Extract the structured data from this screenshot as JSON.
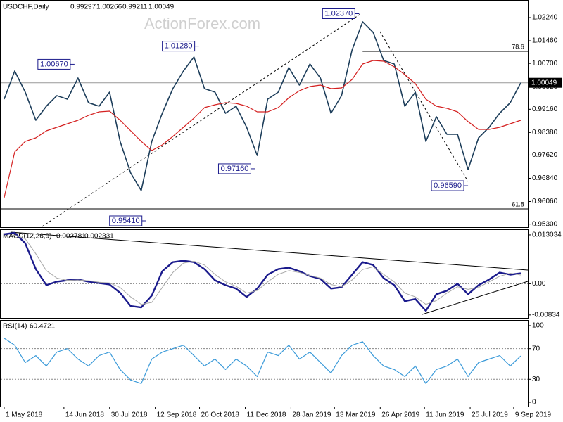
{
  "header": {
    "symbol": "USDCHF,Daily",
    "ohlc": [
      0.99297,
      1.00266,
      0.99211,
      1.00049
    ],
    "watermark": "ActionForex.com"
  },
  "chart_data": [
    {
      "type": "line",
      "panel": "price",
      "x": [
        0,
        1,
        2,
        3,
        4,
        5,
        6,
        7,
        8,
        9,
        10,
        11,
        12,
        13,
        14,
        15,
        16,
        17,
        18,
        19,
        20,
        21,
        22,
        23,
        24,
        25,
        26,
        27,
        28,
        29,
        30,
        31,
        32,
        33,
        34,
        35,
        36,
        37,
        38,
        39,
        40,
        41,
        42,
        43,
        44,
        45,
        46,
        47,
        48,
        49
      ],
      "series": [
        {
          "color": "#1c3d5a",
          "width": 1.6,
          "values": [
            0.99498,
            1.00443,
            0.99734,
            0.98789,
            0.99261,
            0.99616,
            0.99498,
            1.00207,
            0.9938,
            0.99261,
            0.99734,
            0.98079,
            0.97016,
            0.96425,
            0.98079,
            0.99025,
            0.99852,
            1.00443,
            1.00916,
            0.99852,
            0.99734,
            0.99025,
            0.99261,
            0.98552,
            0.97607,
            0.99498,
            0.99734,
            1.00562,
            0.99971,
            1.0068,
            1.00207,
            0.99025,
            0.99616,
            1.01153,
            1.02098,
            1.01744,
            1.00798,
            1.0068,
            0.99261,
            0.99734,
            0.98079,
            0.98907,
            0.98316,
            0.98316,
            0.97134,
            0.98198,
            0.98552,
            0.99025,
            0.9938,
            1.00049
          ]
        },
        {
          "color": "#d42020",
          "width": 1.2,
          "values": [
            0.96188,
            0.97725,
            0.98079,
            0.98198,
            0.98434,
            0.98552,
            0.9867,
            0.98789,
            0.98954,
            0.99072,
            0.99096,
            0.98789,
            0.98434,
            0.98079,
            0.97772,
            0.97961,
            0.98245,
            0.98552,
            0.9886,
            0.99214,
            0.99309,
            0.9938,
            0.99356,
            0.99261,
            0.99072,
            0.99072,
            0.99214,
            0.99545,
            0.99781,
            0.99923,
            0.99971,
            0.99852,
            0.99876,
            1.0016,
            1.0068,
            1.00798,
            1.00774,
            1.00585,
            1.00325,
            1.00018,
            0.99498,
            0.99261,
            0.9919,
            0.99072,
            0.98741,
            0.98481,
            0.98481,
            0.98552,
            0.9867,
            0.98789
          ]
        }
      ],
      "xlim": [
        -0.33,
        49.67
      ],
      "ylim": [
        0.95197,
        1.02807
      ],
      "yticks": [
        {
          "value": 1.0224,
          "label": "1.02240"
        },
        {
          "value": 1.0146,
          "label": "1.01460"
        },
        {
          "value": 1.007,
          "label": "1.00700"
        },
        {
          "value": 0.9992,
          "label": "0.99920"
        },
        {
          "value": 0.9916,
          "label": "0.99160"
        },
        {
          "value": 0.9838,
          "label": "0.98380"
        },
        {
          "value": 0.9762,
          "label": "0.97620"
        },
        {
          "value": 0.9684,
          "label": "0.96840"
        },
        {
          "value": 0.9606,
          "label": "0.96060"
        },
        {
          "value": 0.953,
          "label": "0.95300"
        }
      ],
      "annotations": [
        {
          "x": 6.67,
          "value": 1.0067,
          "label": "1.00670"
        },
        {
          "x": 18.47,
          "value": 1.0128,
          "label": "1.01280"
        },
        {
          "x": 33.67,
          "value": 1.0237,
          "label": "1.02370"
        },
        {
          "x": 23.8,
          "value": 0.9716,
          "label": "0.97160"
        },
        {
          "x": 13.47,
          "value": 0.9541,
          "label": "0.95410"
        },
        {
          "x": 44,
          "value": 0.9659,
          "label": "0.96590"
        }
      ],
      "levels": [
        {
          "ratio": 78.6,
          "value": 1.01105,
          "from_x": 34
        },
        {
          "ratio": 61.8,
          "value": 0.95811,
          "from_x": -0.33
        }
      ],
      "last": {
        "value": 1.00049,
        "label": "1.00049"
      }
    },
    {
      "type": "line",
      "panel": "macd",
      "title": "MACD(12,26,9)",
      "x": [
        0,
        1,
        2,
        3,
        4,
        5,
        6,
        7,
        8,
        9,
        10,
        11,
        12,
        13,
        14,
        15,
        16,
        17,
        18,
        19,
        20,
        21,
        22,
        23,
        24,
        25,
        26,
        27,
        28,
        29,
        30,
        31,
        32,
        33,
        34,
        35,
        36,
        37,
        38,
        39,
        40,
        41,
        42,
        43,
        44,
        45,
        46,
        47,
        48,
        49
      ],
      "series": [
        {
          "color": "#1a1a8c",
          "width": 2.4,
          "values": [
            0.01321,
            0.01358,
            0.01079,
            0.00391,
            -0.00037,
            0.00056,
            0.00093,
            0.00112,
            0.00056,
            0.00019,
            -0.00019,
            -0.00242,
            -0.00595,
            -0.00632,
            -0.00316,
            0.00335,
            0.00577,
            0.00614,
            0.00577,
            0.00391,
            0.00093,
            -0.00037,
            -0.0013,
            -0.00353,
            -0.0013,
            0.00242,
            0.00391,
            0.00428,
            0.00335,
            0.00205,
            0.0013,
            -0.0013,
            -0.00093,
            0.00242,
            0.00577,
            0.00502,
            0.00149,
            -0.00037,
            -0.00465,
            -0.00409,
            -0.00725,
            -0.00279,
            -0.00186,
            0,
            -0.00279,
            -0.00037,
            0.00112,
            0.00298,
            0.00242,
            0.002781
          ]
        },
        {
          "color": "#a8a8a8",
          "width": 1,
          "values": [
            0.0125,
            0.013,
            0.012,
            0.008,
            0.0035,
            0.0015,
            0.0009,
            0.001,
            0.0008,
            0.0004,
            0.0002,
            -0.001,
            -0.0035,
            -0.0055,
            -0.005,
            -0.001,
            0.003,
            0.0055,
            0.006,
            0.005,
            0.0025,
            0.0005,
            -0.0007,
            -0.0025,
            -0.0018,
            0.0005,
            0.0025,
            0.0035,
            0.003,
            0.0022,
            0.0015,
            -0.0002,
            -0.0008,
            0.001,
            0.0038,
            0.0045,
            0.0025,
            0.0005,
            -0.0025,
            -0.0035,
            -0.0055,
            -0.0045,
            -0.0025,
            -0.0008,
            -0.0015,
            -0.001,
            0.0005,
            0.002,
            0.0028,
            0.002331
          ]
        }
      ],
      "xlim": [
        -0.33,
        49.67
      ],
      "ylim": [
        -0.00912,
        0.01434
      ],
      "yticks": [
        0.013034,
        {
          "value": 0,
          "label": "0.00"
        },
        -0.00834
      ],
      "hlines": [
        0
      ]
    },
    {
      "type": "line",
      "panel": "rsi",
      "title": "RSI(14)",
      "x": [
        0,
        1,
        2,
        3,
        4,
        5,
        6,
        7,
        8,
        9,
        10,
        11,
        12,
        13,
        14,
        15,
        16,
        17,
        18,
        19,
        20,
        21,
        22,
        23,
        24,
        25,
        26,
        27,
        28,
        29,
        30,
        31,
        32,
        33,
        34,
        35,
        36,
        37,
        38,
        39,
        40,
        41,
        42,
        43,
        44,
        45,
        46,
        47,
        48,
        49
      ],
      "series": [
        {
          "color": "#3a9ad9",
          "width": 1.2,
          "values": [
            83.6,
            74.5,
            51.8,
            60.9,
            47.3,
            65.5,
            70,
            56.4,
            47.3,
            60.9,
            65.5,
            42.7,
            29.1,
            24.5,
            56.4,
            65.5,
            70,
            74.5,
            60.9,
            47.3,
            56.4,
            42.7,
            56.4,
            47.3,
            33.6,
            65.5,
            60.9,
            74.5,
            56.4,
            65.5,
            51.8,
            38.2,
            60.9,
            74.5,
            79.1,
            60.9,
            47.3,
            42.7,
            33.6,
            47.3,
            24.5,
            42.7,
            47.3,
            56.4,
            33.6,
            51.8,
            56.4,
            60.9,
            47.3,
            60.4721
          ]
        }
      ],
      "xlim": [
        -0.33,
        49.67
      ],
      "ylim": [
        -5.5,
        106.4
      ],
      "yticks": [
        100,
        70,
        30,
        0
      ],
      "hlines": [
        70,
        30
      ],
      "xticks": [
        {
          "value": 0,
          "label": "1 May 2018"
        },
        {
          "value": 5.67,
          "label": "14 Jun 2018"
        },
        {
          "value": 10,
          "label": "30 Jul 2018"
        },
        {
          "value": 14.33,
          "label": "12 Sep 2018"
        },
        {
          "value": 18.53,
          "label": "26 Oct 2018"
        },
        {
          "value": 22.87,
          "label": "11 Dec 2018"
        },
        {
          "value": 27.2,
          "label": "28 Jan 2019"
        },
        {
          "value": 31.33,
          "label": "13 Mar 2019"
        },
        {
          "value": 35.67,
          "label": "26 Apr 2019"
        },
        {
          "value": 39.87,
          "label": "11 Jun 2019"
        },
        {
          "value": 44.2,
          "label": "25 Jul 2019"
        },
        {
          "value": 48.33,
          "label": "9 Sep 2019"
        }
      ]
    }
  ]
}
